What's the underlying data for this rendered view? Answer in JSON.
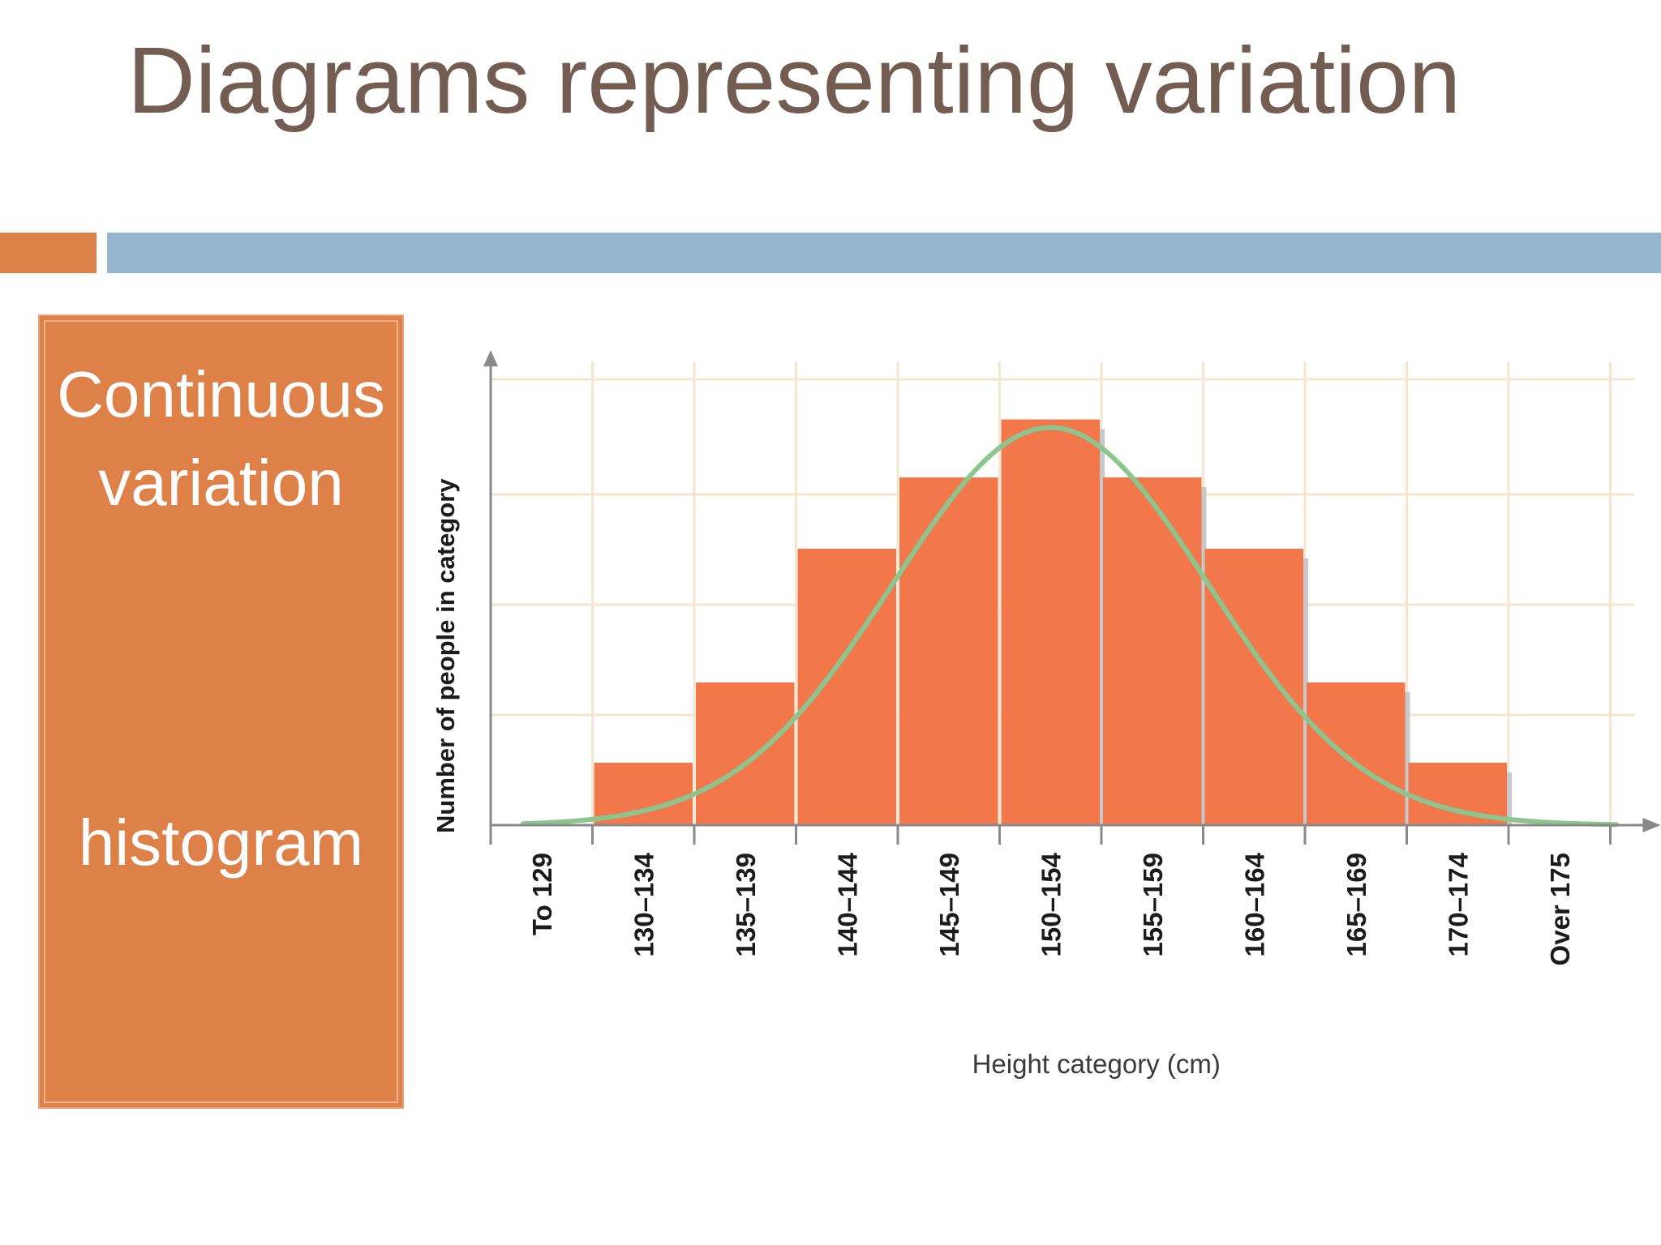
{
  "slide": {
    "title": "Diagrams representing variation",
    "box": {
      "term": "Continuous variation",
      "diagram_type": "histogram"
    }
  },
  "colors": {
    "title": "#735d52",
    "accent_orange": "#dd8148",
    "accent_blue": "#95b5cf",
    "bar": "#f2784b",
    "curve": "#8dc58e",
    "grid": "#f4e6cf",
    "axis": "#8a8a8a"
  },
  "chart_data": {
    "type": "bar",
    "title": "",
    "xlabel": "Height category (cm)",
    "ylabel": "Number of people in category",
    "categories": [
      "To 129",
      "130–134",
      "135–139",
      "140–144",
      "145–149",
      "150–154",
      "155–159",
      "160–164",
      "165–169",
      "170–174",
      "Over 175"
    ],
    "values": [
      0,
      1.4,
      3.2,
      6.2,
      7.8,
      9.1,
      7.8,
      6.2,
      3.2,
      1.4,
      0
    ],
    "ylim": [
      0,
      10
    ],
    "grid": true,
    "overlay": {
      "type": "line",
      "name": "normal distribution curve",
      "shape": "bell"
    }
  }
}
